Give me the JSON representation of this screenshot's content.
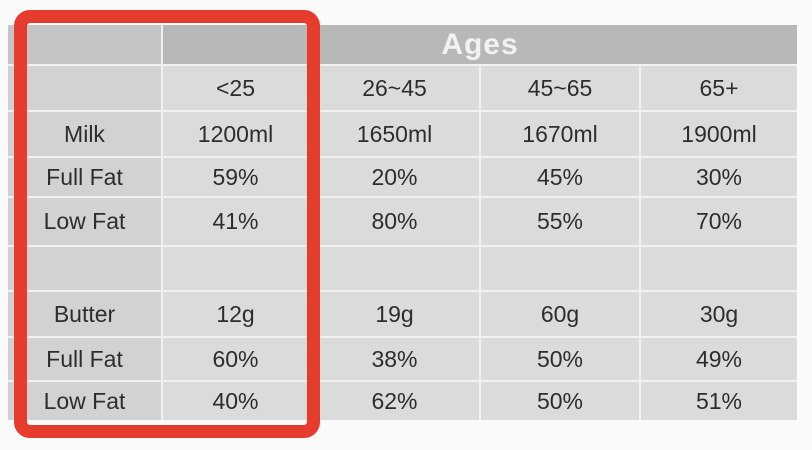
{
  "figure": {
    "background": "#fbfafa"
  },
  "table": {
    "title": "Ages",
    "columns": [
      "<25",
      "26~45",
      "45~65",
      "65+"
    ],
    "rows": [
      {
        "label": "Milk",
        "values": [
          "1200ml",
          "1650ml",
          "1670ml",
          "1900ml"
        ]
      },
      {
        "label": "Full Fat",
        "values": [
          "59%",
          "20%",
          "45%",
          "30%"
        ]
      },
      {
        "label": "Low Fat",
        "values": [
          "41%",
          "80%",
          "55%",
          "70%"
        ]
      },
      {
        "label": "",
        "values": [
          "",
          "",
          "",
          ""
        ]
      },
      {
        "label": "Butter",
        "values": [
          "12g",
          "19g",
          "60g",
          "30g"
        ]
      },
      {
        "label": "Full Fat",
        "values": [
          "60%",
          "38%",
          "50%",
          "49%"
        ]
      },
      {
        "label": "Low Fat",
        "values": [
          "40%",
          "62%",
          "50%",
          "51%"
        ]
      }
    ]
  },
  "chart_data": {
    "type": "table",
    "title": "Ages",
    "categories": [
      "<25",
      "26~45",
      "45~65",
      "65+"
    ],
    "series": [
      {
        "name": "Milk",
        "values": [
          "1200ml",
          "1650ml",
          "1670ml",
          "1900ml"
        ]
      },
      {
        "name": "Full Fat",
        "values": [
          "59%",
          "20%",
          "45%",
          "30%"
        ]
      },
      {
        "name": "Low Fat",
        "values": [
          "41%",
          "80%",
          "55%",
          "70%"
        ]
      },
      {
        "name": "Butter",
        "values": [
          "12g",
          "19g",
          "60g",
          "30g"
        ]
      },
      {
        "name": "Full Fat",
        "values": [
          "60%",
          "38%",
          "50%",
          "49%"
        ]
      },
      {
        "name": "Low Fat",
        "values": [
          "40%",
          "62%",
          "50%",
          "51%"
        ]
      }
    ],
    "layout": {
      "header_band": "merged cell spanning all four age columns",
      "empty_spacer_row_between": [
        "Low Fat (milk)",
        "Butter"
      ]
    }
  },
  "annotation": {
    "highlight_color": "#e63c2d",
    "highlighted_region": "row-label column and <25 column"
  },
  "colors": {
    "ages_band": "#b9b8b8",
    "corner_band": "#c6c5c5",
    "label_cell": "#d3d2d2",
    "data_cell": "#dcdbdb",
    "grid_line": "#f2f1f1",
    "text": "#2e2d2d",
    "ages_text": "#f3f2f2"
  }
}
